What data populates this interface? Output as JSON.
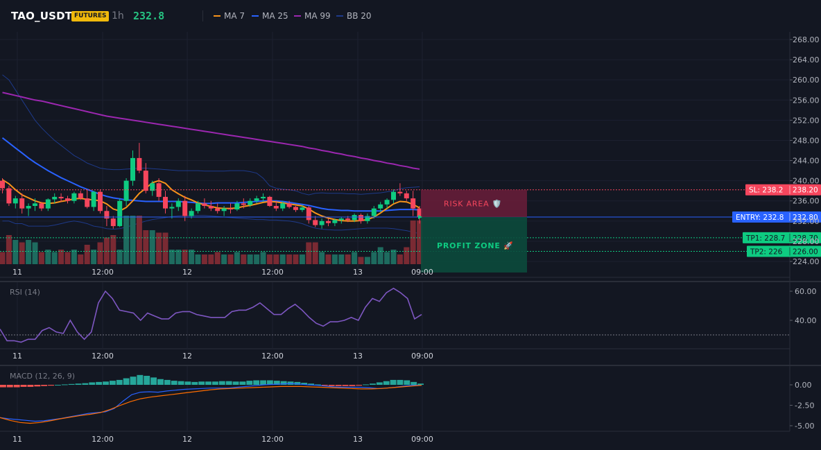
{
  "header": {
    "symbol": "TAO_USDT",
    "badge": "FUTURES",
    "timeframe": "1h",
    "price": "232.8",
    "legend": [
      {
        "label": "MA 7",
        "color": "#f7931a"
      },
      {
        "label": "MA 25",
        "color": "#2962ff"
      },
      {
        "label": "MA 99",
        "color": "#9c27b0"
      },
      {
        "label": "BB 20",
        "color": "#1e3a8a"
      }
    ]
  },
  "colors": {
    "up": "#26a69a",
    "down": "#ef5350",
    "up_candle": "#0ecb81",
    "down_candle": "#f6465d",
    "risk": "#f6465d",
    "profit": "#0ecb81",
    "entry": "#2962ff"
  },
  "time_axis": {
    "labels": [
      "11",
      "12:00",
      "12",
      "12:00",
      "13",
      "09:00"
    ]
  },
  "chart_data": [
    {
      "type": "candlestick",
      "price_axis": {
        "ticks": [
          "268.00",
          "264.00",
          "260.00",
          "256.00",
          "252.00",
          "248.00",
          "244.00",
          "240.00",
          "236.00",
          "232.00",
          "228.00",
          "224.00"
        ],
        "ylim": [
          223,
          270
        ]
      },
      "candles": [
        [
          240.0,
          240.5,
          237.5,
          238.5
        ],
        [
          238.5,
          239.0,
          235.0,
          235.5
        ],
        [
          235.5,
          237.0,
          234.5,
          236.5
        ],
        [
          236.5,
          237.5,
          233.5,
          234.5
        ],
        [
          234.5,
          235.5,
          233.0,
          235.0
        ],
        [
          235.0,
          236.5,
          234.0,
          235.5
        ],
        [
          235.5,
          235.8,
          234.0,
          234.5
        ],
        [
          234.5,
          236.5,
          234.0,
          236.3
        ],
        [
          236.3,
          237.5,
          235.5,
          236.8
        ],
        [
          236.8,
          237.5,
          235.8,
          236.5
        ],
        [
          236.5,
          237.0,
          235.5,
          236.0
        ],
        [
          236.0,
          237.8,
          235.5,
          237.5
        ],
        [
          237.5,
          238.0,
          236.2,
          236.5
        ],
        [
          236.5,
          238.3,
          234.5,
          234.8
        ],
        [
          234.8,
          238.0,
          234.0,
          237.8
        ],
        [
          237.8,
          238.3,
          233.5,
          234.0
        ],
        [
          234.0,
          235.0,
          231.0,
          232.5
        ],
        [
          232.5,
          233.0,
          230.5,
          231.0
        ],
        [
          231.0,
          236.5,
          230.8,
          236.0
        ],
        [
          236.0,
          240.5,
          235.0,
          240.0
        ],
        [
          240.0,
          246.0,
          239.0,
          244.5
        ],
        [
          244.5,
          247.5,
          241.5,
          242.0
        ],
        [
          242.0,
          243.5,
          237.5,
          238.0
        ],
        [
          238.0,
          240.0,
          237.0,
          239.5
        ],
        [
          239.5,
          240.5,
          236.0,
          236.8
        ],
        [
          236.8,
          238.0,
          233.5,
          234.5
        ],
        [
          234.5,
          235.5,
          232.5,
          234.8
        ],
        [
          234.8,
          236.5,
          234.0,
          236.0
        ],
        [
          236.0,
          237.0,
          232.0,
          233.0
        ],
        [
          233.0,
          234.5,
          232.5,
          234.0
        ],
        [
          234.0,
          236.0,
          233.5,
          235.5
        ],
        [
          235.5,
          236.5,
          234.5,
          235.0
        ],
        [
          235.0,
          236.0,
          234.0,
          234.5
        ],
        [
          234.5,
          235.5,
          233.5,
          234.0
        ],
        [
          234.0,
          235.0,
          233.0,
          234.5
        ],
        [
          234.5,
          235.5,
          233.5,
          234.3
        ],
        [
          234.3,
          236.0,
          234.0,
          235.5
        ],
        [
          235.5,
          236.5,
          234.5,
          235.2
        ],
        [
          235.2,
          236.5,
          234.8,
          236.0
        ],
        [
          236.0,
          237.0,
          235.5,
          236.5
        ],
        [
          236.5,
          237.5,
          235.8,
          236.8
        ],
        [
          236.8,
          237.0,
          234.8,
          235.0
        ],
        [
          235.0,
          236.0,
          234.0,
          234.5
        ],
        [
          234.5,
          236.0,
          234.0,
          235.5
        ],
        [
          235.5,
          236.0,
          234.5,
          234.8
        ],
        [
          234.8,
          235.0,
          233.8,
          234.2
        ],
        [
          234.2,
          235.2,
          233.8,
          234.7
        ],
        [
          234.7,
          235.0,
          231.5,
          232.2
        ],
        [
          232.2,
          233.0,
          230.8,
          231.2
        ],
        [
          231.2,
          232.5,
          230.5,
          232.0
        ],
        [
          232.0,
          232.5,
          231.0,
          231.6
        ],
        [
          231.6,
          232.5,
          231.0,
          232.2
        ],
        [
          232.2,
          232.8,
          231.5,
          232.5
        ],
        [
          232.5,
          233.0,
          231.8,
          232.2
        ],
        [
          232.2,
          233.5,
          231.8,
          233.2
        ],
        [
          233.2,
          233.5,
          231.5,
          232.0
        ],
        [
          232.0,
          233.5,
          231.5,
          233.0
        ],
        [
          233.0,
          235.0,
          232.5,
          234.5
        ],
        [
          234.5,
          235.8,
          233.8,
          235.3
        ],
        [
          235.3,
          236.5,
          234.5,
          236.2
        ],
        [
          236.2,
          238.3,
          235.5,
          237.8
        ],
        [
          237.8,
          239.5,
          237.0,
          237.5
        ],
        [
          237.5,
          238.0,
          236.0,
          236.5
        ],
        [
          236.5,
          238.0,
          233.0,
          234.5
        ],
        [
          234.5,
          235.0,
          231.5,
          232.8
        ]
      ],
      "ma7": [
        240.2,
        239.4,
        238.2,
        237.2,
        236.6,
        236.0,
        235.6,
        235.5,
        235.6,
        235.9,
        236.1,
        236.4,
        236.5,
        236.3,
        236.2,
        236.0,
        235.4,
        234.4,
        234.0,
        234.7,
        236.0,
        237.5,
        238.5,
        239.6,
        240.0,
        239.5,
        238.2,
        237.4,
        236.7,
        236.2,
        235.6,
        235.2,
        234.9,
        234.6,
        234.5,
        234.5,
        234.6,
        234.9,
        235.1,
        235.4,
        235.7,
        235.9,
        235.8,
        235.6,
        235.4,
        235.2,
        235.0,
        234.4,
        233.6,
        233.0,
        232.6,
        232.3,
        232.1,
        232.0,
        232.0,
        232.1,
        232.3,
        232.8,
        233.6,
        234.5,
        235.4,
        235.9,
        235.8,
        235.3,
        234.6
      ],
      "ma25": [
        248.5,
        247.5,
        246.5,
        245.5,
        244.5,
        243.6,
        242.8,
        242.0,
        241.3,
        240.6,
        240.0,
        239.4,
        238.8,
        238.3,
        237.8,
        237.3,
        236.9,
        236.6,
        236.4,
        236.2,
        236.1,
        236.0,
        235.9,
        235.9,
        235.9,
        235.9,
        235.9,
        235.9,
        235.8,
        235.7,
        235.6,
        235.5,
        235.5,
        235.6,
        235.6,
        235.6,
        235.6,
        235.7,
        235.8,
        235.9,
        236.0,
        236.0,
        236.0,
        235.9,
        235.7,
        235.5,
        235.3,
        235.1,
        234.8,
        234.5,
        234.3,
        234.2,
        234.1,
        234.1,
        234.0,
        234.0,
        234.0,
        234.0,
        234.0,
        234.1,
        234.2,
        234.3,
        234.3,
        234.3,
        234.2
      ],
      "ma99": [
        257.5,
        257.2,
        256.9,
        256.6,
        256.3,
        256.0,
        255.8,
        255.5,
        255.2,
        254.9,
        254.6,
        254.3,
        254.0,
        253.7,
        253.4,
        253.1,
        252.8,
        252.6,
        252.4,
        252.2,
        252.0,
        251.8,
        251.6,
        251.4,
        251.2,
        251.0,
        250.8,
        250.6,
        250.4,
        250.2,
        250.0,
        249.8,
        249.6,
        249.4,
        249.2,
        249.0,
        248.8,
        248.6,
        248.4,
        248.2,
        248.0,
        247.8,
        247.6,
        247.4,
        247.2,
        247.0,
        246.8,
        246.5,
        246.3,
        246.0,
        245.8,
        245.5,
        245.3,
        245.0,
        244.8,
        244.5,
        244.3,
        244.0,
        243.8,
        243.5,
        243.3,
        243.0,
        242.8,
        242.5,
        242.3
      ],
      "bb_upper": [
        261.0,
        260.0,
        258.0,
        256.0,
        254.0,
        252.0,
        250.5,
        249.2,
        248.0,
        247.0,
        246.0,
        245.0,
        244.3,
        243.5,
        243.0,
        242.5,
        242.3,
        242.2,
        242.2,
        242.3,
        242.4,
        242.5,
        242.5,
        242.4,
        242.3,
        242.2,
        242.1,
        242.0,
        242.0,
        242.0,
        242.0,
        241.9,
        241.9,
        241.9,
        241.9,
        242.0,
        242.0,
        242.0,
        241.8,
        241.5,
        240.5,
        239.0,
        238.5,
        238.3,
        238.2,
        238.0,
        237.5,
        237.2,
        237.5,
        237.6,
        237.5,
        237.5,
        237.5,
        237.4,
        237.4,
        237.3,
        237.4,
        237.5,
        237.6,
        237.8,
        238.0,
        238.4,
        238.6,
        238.7,
        238.8
      ],
      "bb_lower": [
        232.0,
        232.0,
        231.5,
        231.5,
        231.0,
        231.0,
        231.0,
        231.0,
        231.2,
        231.5,
        231.8,
        232.0,
        231.8,
        231.5,
        231.0,
        230.8,
        230.5,
        230.4,
        230.5,
        230.8,
        231.2,
        231.6,
        232.0,
        232.3,
        232.5,
        232.7,
        232.9,
        233.0,
        233.1,
        233.1,
        233.1,
        233.1,
        233.0,
        232.9,
        232.8,
        232.7,
        232.6,
        232.5,
        232.4,
        232.3,
        232.3,
        232.2,
        232.2,
        232.1,
        232.0,
        231.8,
        231.5,
        231.0,
        230.6,
        230.4,
        230.3,
        230.2,
        230.2,
        230.3,
        230.4,
        230.5,
        230.6,
        230.6,
        230.6,
        230.6,
        230.5,
        230.3,
        230.1,
        229.8,
        229.5
      ],
      "volume": [
        0.25,
        0.6,
        0.5,
        0.45,
        0.5,
        0.45,
        0.25,
        0.3,
        0.25,
        0.3,
        0.25,
        0.3,
        0.2,
        0.4,
        0.3,
        0.45,
        0.55,
        0.6,
        0.3,
        1.0,
        1.0,
        1.0,
        0.7,
        0.7,
        0.65,
        0.65,
        0.3,
        0.3,
        0.3,
        0.3,
        0.2,
        0.2,
        0.2,
        0.25,
        0.2,
        0.2,
        0.25,
        0.2,
        0.2,
        0.2,
        0.25,
        0.2,
        0.2,
        0.2,
        0.2,
        0.2,
        0.2,
        0.45,
        0.45,
        0.25,
        0.2,
        0.2,
        0.2,
        0.2,
        0.25,
        0.15,
        0.15,
        0.25,
        0.35,
        0.25,
        0.3,
        0.2,
        0.35,
        0.9,
        0.9
      ],
      "levels": {
        "sl": {
          "label": "SL: 238.2",
          "price": "238.20",
          "value": 238.2
        },
        "entry": {
          "label": "ENTRY: 232.8",
          "price": "232.80",
          "value": 232.8
        },
        "tp1": {
          "label": "TP1: 228.7",
          "price": "228.70",
          "value": 228.7
        },
        "tp2": {
          "label": "TP2: 226",
          "price": "226.00",
          "value": 226.0
        }
      },
      "zones": {
        "risk_label": "RISK AREA 🛡️",
        "profit_label": "PROFIT ZONE 🚀"
      }
    },
    {
      "type": "line",
      "title": "RSI (14)",
      "ticks": [
        "60.00",
        "40.00"
      ],
      "ylim": [
        19,
        66
      ],
      "reference": 30,
      "values": [
        34,
        26,
        26,
        25,
        27,
        27,
        33,
        35,
        32,
        31,
        40,
        32,
        27,
        32,
        52,
        60,
        55,
        47,
        46,
        45,
        40,
        45,
        43,
        41,
        41,
        45,
        46,
        46,
        44,
        43,
        42,
        42,
        42,
        46,
        47,
        47,
        49,
        52,
        48,
        44,
        44,
        48,
        51,
        47,
        42,
        38,
        36,
        39,
        39,
        40,
        42,
        40,
        49,
        55,
        53,
        59,
        62,
        59,
        55,
        41,
        44
      ]
    },
    {
      "type": "bar+line",
      "title": "MACD (12, 26, 9)",
      "ticks": [
        "0.00",
        "-2.50",
        "-5.00"
      ],
      "ylim": [
        -5.6,
        1.8
      ],
      "histogram": [
        -0.3,
        -0.3,
        -0.3,
        -0.25,
        -0.25,
        -0.2,
        -0.15,
        -0.1,
        0.0,
        0.05,
        0.1,
        0.15,
        0.2,
        0.3,
        0.35,
        0.4,
        0.5,
        0.6,
        0.8,
        1.0,
        1.2,
        1.1,
        0.9,
        0.7,
        0.6,
        0.5,
        0.45,
        0.4,
        0.35,
        0.4,
        0.4,
        0.4,
        0.45,
        0.45,
        0.4,
        0.4,
        0.5,
        0.55,
        0.55,
        0.55,
        0.5,
        0.45,
        0.4,
        0.35,
        0.25,
        0.15,
        0.05,
        -0.1,
        -0.15,
        -0.15,
        -0.15,
        -0.15,
        -0.1,
        0.05,
        0.15,
        0.3,
        0.45,
        0.6,
        0.6,
        0.55,
        0.35,
        0.15
      ],
      "macd": [
        -4.0,
        -4.15,
        -4.25,
        -4.35,
        -4.45,
        -4.4,
        -4.25,
        -4.1,
        -3.9,
        -3.7,
        -3.5,
        -3.4,
        -3.3,
        -2.9,
        -2.0,
        -1.2,
        -0.9,
        -0.85,
        -0.9,
        -0.75,
        -0.65,
        -0.55,
        -0.5,
        -0.45,
        -0.4,
        -0.4,
        -0.4,
        -0.3,
        -0.2,
        -0.1,
        0.0,
        0.05,
        0.1,
        0.15,
        0.1,
        0.0,
        -0.05,
        -0.15,
        -0.25,
        -0.3,
        -0.3,
        -0.3,
        -0.35,
        -0.45,
        -0.4,
        -0.3,
        -0.15,
        -0.05,
        -0.05
      ],
      "signal": [
        -4.0,
        -4.35,
        -4.6,
        -4.7,
        -4.6,
        -4.4,
        -4.15,
        -3.95,
        -3.75,
        -3.6,
        -3.4,
        -3.0,
        -2.5,
        -2.05,
        -1.7,
        -1.5,
        -1.35,
        -1.2,
        -1.05,
        -0.9,
        -0.75,
        -0.6,
        -0.5,
        -0.45,
        -0.4,
        -0.35,
        -0.3,
        -0.25,
        -0.2,
        -0.2,
        -0.2,
        -0.25,
        -0.3,
        -0.35,
        -0.4,
        -0.45,
        -0.5,
        -0.5,
        -0.45,
        -0.35,
        -0.25,
        -0.15,
        -0.05
      ]
    }
  ]
}
